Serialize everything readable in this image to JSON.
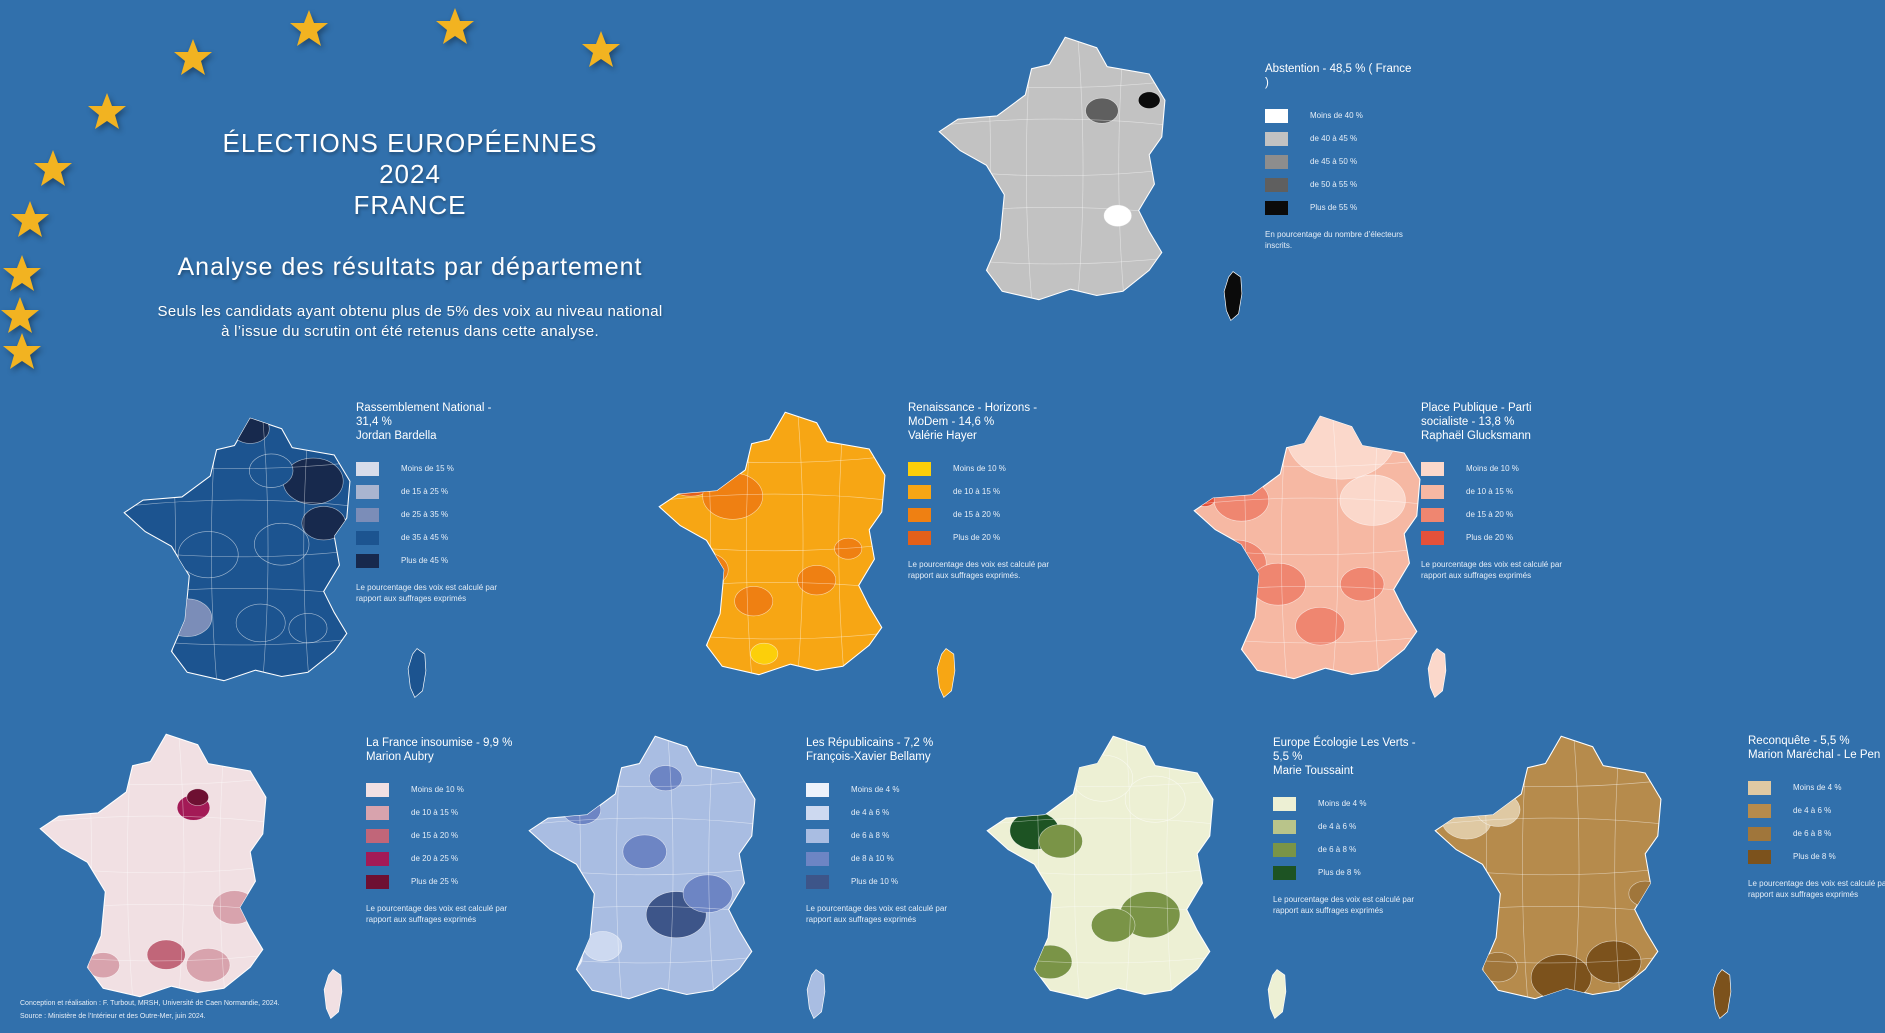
{
  "header": {
    "title_line1": "ÉLECTIONS EUROPÉENNES",
    "title_line2": "2024",
    "title_line3": "FRANCE",
    "subtitle": "Analyse des résultats par département",
    "note_line1": "Seuls les candidats ayant obtenu plus de 5% des voix au niveau national",
    "note_line2": "à l’issue du scrutin ont été retenus dans cette analyse."
  },
  "star_color": "#f2b321",
  "maps": [
    {
      "id": "abstention",
      "title": "Abstention - 48,5 % ( France )",
      "subtitle": "",
      "base_color": "#c2c2c2",
      "corsica_color": "#0b0b0b",
      "legend": [
        {
          "label": "Moins de 40 %",
          "color": "#ffffff"
        },
        {
          "label": "de 40 à 45 %",
          "color": "#c2c2c2"
        },
        {
          "label": "de 45 à 50 %",
          "color": "#8d8d8d"
        },
        {
          "label": "de 50 à 55 %",
          "color": "#5f5f5f"
        },
        {
          "label": "Plus de 55 %",
          "color": "#0b0b0b"
        }
      ],
      "note": "En pourcentage du nombre d’électeurs inscrits."
    },
    {
      "id": "rn",
      "title": "Rassemblement National - 31,4 %",
      "subtitle": "Jordan Bardella",
      "base_color": "#1c5490",
      "corsica_color": "#1c5490",
      "legend": [
        {
          "label": "Moins de 15 %",
          "color": "#d7dcea"
        },
        {
          "label": "de 15 à 25 %",
          "color": "#a9b5d0"
        },
        {
          "label": "de 25 à 35 %",
          "color": "#7b8db8"
        },
        {
          "label": "de 35 à 45 %",
          "color": "#1c5490"
        },
        {
          "label": "Plus de 45 %",
          "color": "#17294d"
        }
      ],
      "note": "Le pourcentage des voix est calculé par rapport aux suffrages exprimés"
    },
    {
      "id": "renaissance",
      "title": "Renaissance - Horizons - MoDem - 14,6 %",
      "subtitle": "Valérie Hayer",
      "base_color": "#f7a614",
      "corsica_color": "#f7a614",
      "legend": [
        {
          "label": "Moins de 10 %",
          "color": "#fccf0a"
        },
        {
          "label": "de 10 à 15 %",
          "color": "#f7a614"
        },
        {
          "label": "de 15 à 20 %",
          "color": "#ef8012"
        },
        {
          "label": "Plus de 20 %",
          "color": "#e3601a"
        }
      ],
      "note": "Le pourcentage des voix est calculé par rapport aux suffrages exprimés."
    },
    {
      "id": "ps",
      "title": "Place Publique - Parti socialiste - 13,8 %",
      "subtitle": "Raphaël Glucksmann",
      "base_color": "#f6b8a3",
      "corsica_color": "#fbd8cb",
      "legend": [
        {
          "label": "Moins de 10 %",
          "color": "#fbd8cb"
        },
        {
          "label": "de 10 à 15 %",
          "color": "#f6b8a3"
        },
        {
          "label": "de 15 à 20 %",
          "color": "#ef8670"
        },
        {
          "label": "Plus de 20 %",
          "color": "#e4513a"
        }
      ],
      "note": "Le pourcentage des voix est calculé par rapport aux suffrages exprimés"
    },
    {
      "id": "lfi",
      "title": "La France insoumise - 9,9 %",
      "subtitle": "Marion Aubry",
      "base_color": "#f1e0e3",
      "corsica_color": "#f1e0e3",
      "legend": [
        {
          "label": "Moins de 10 %",
          "color": "#f1e0e3"
        },
        {
          "label": "de 10 à 15 %",
          "color": "#d8a3ad"
        },
        {
          "label": "de 15 à 20 %",
          "color": "#c16679"
        },
        {
          "label": "de 20 à 25 %",
          "color": "#a31a56"
        },
        {
          "label": "Plus de 25 %",
          "color": "#6e1032"
        }
      ],
      "note": "Le pourcentage des voix est calculé par rapport aux suffrages exprimés"
    },
    {
      "id": "lr",
      "title": "Les Républicains - 7,2 %",
      "subtitle": "François-Xavier Bellamy",
      "base_color": "#a9bde2",
      "corsica_color": "#a9bde2",
      "legend": [
        {
          "label": "Moins de 4 %",
          "color": "#edf2fb"
        },
        {
          "label": "de 4 à 6 %",
          "color": "#cdd9f0"
        },
        {
          "label": "de 6 à 8 %",
          "color": "#a9bde2"
        },
        {
          "label": "de 8 à 10 %",
          "color": "#6d85c4"
        },
        {
          "label": "Plus de 10 %",
          "color": "#3d5589"
        }
      ],
      "note": "Le pourcentage des voix est calculé par rapport aux suffrages exprimés"
    },
    {
      "id": "eelv",
      "title": "Europe Écologie Les Verts - 5,5 %",
      "subtitle": "Marie Toussaint",
      "base_color": "#edf0d4",
      "corsica_color": "#edf0d4",
      "legend": [
        {
          "label": "Moins de 4 %",
          "color": "#edf0d4"
        },
        {
          "label": "de 4 à 6 %",
          "color": "#b9c48a"
        },
        {
          "label": "de 6 à 8 %",
          "color": "#7a9447"
        },
        {
          "label": "Plus de 8 %",
          "color": "#1d5323"
        }
      ],
      "note": "Le pourcentage des voix est calculé par rapport aux suffrages exprimés"
    },
    {
      "id": "reconquete",
      "title": "Reconquête - 5,5 %",
      "subtitle": "Marion Maréchal - Le Pen",
      "base_color": "#b68b4c",
      "corsica_color": "#7c521c",
      "legend": [
        {
          "label": "Moins de 4 %",
          "color": "#dfc9a3"
        },
        {
          "label": "de 4 à 6 %",
          "color": "#b68b4c"
        },
        {
          "label": "de 6 à 8 %",
          "color": "#a0763b"
        },
        {
          "label": "Plus de 8 %",
          "color": "#7c521c"
        }
      ],
      "note": "Le pourcentage des voix est calculé par rapport aux suffrages exprimés"
    }
  ],
  "credits": {
    "line1": "Conception et réalisation : F. Turbout, MRSH, Université de Caen Normandie, 2024.",
    "line2": "Source : Ministère de l’Intérieur et des Outre-Mer, juin 2024."
  }
}
